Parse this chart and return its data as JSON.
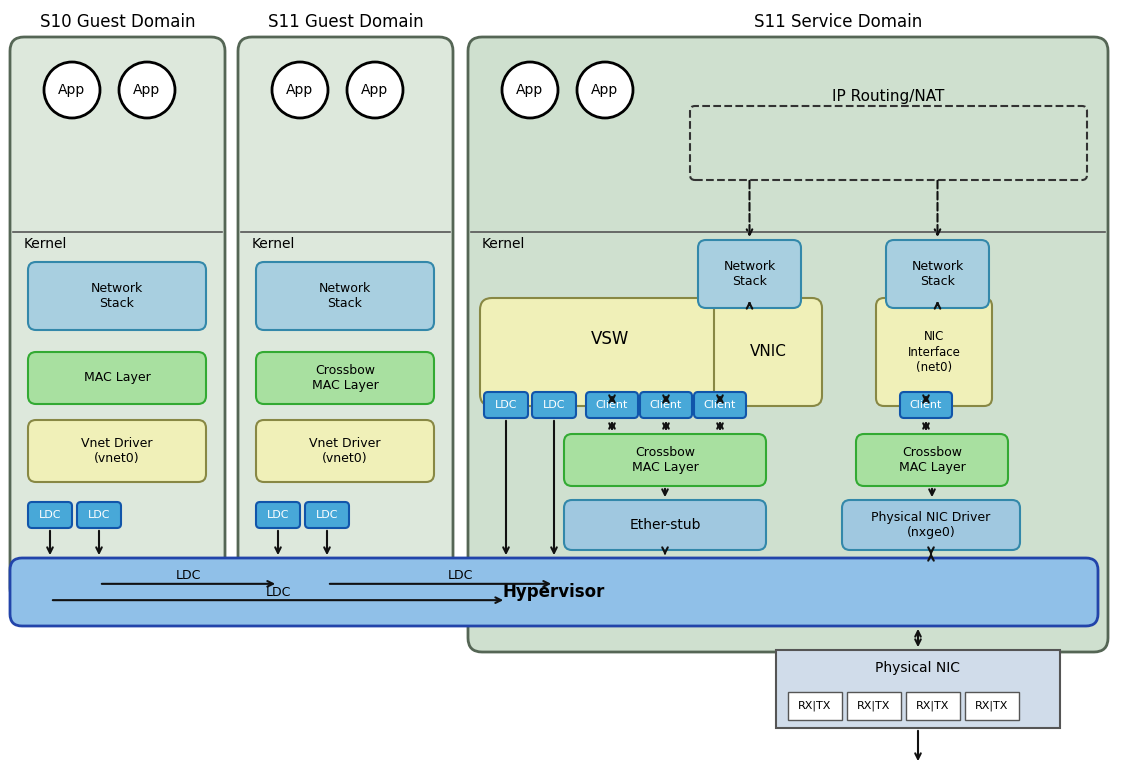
{
  "title_s10": "S10 Guest Domain",
  "title_s11g": "S11 Guest Domain",
  "title_s11s": "S11 Service Domain",
  "bg_color": "#ffffff",
  "domain_s10_bg": "#dde8dc",
  "domain_s11g_bg": "#dde8dc",
  "domain_s11s_bg": "#cfe0cf",
  "network_stack_color": "#a8cfe0",
  "mac_layer_color": "#a8e0a0",
  "vnet_driver_color": "#f0f0b8",
  "crossbow_mac_s11g_color": "#a8e0a0",
  "ldc_color": "#48a8d8",
  "vsw_color": "#f0f0b8",
  "vnic_color": "#f0f0b8",
  "nic_interface_color": "#f0f0b8",
  "client_color": "#48a8d8",
  "crossbow_mac_color": "#a8e0a0",
  "crossbow_mac_r_color": "#a8e0a0",
  "ether_stub_color": "#a0c8e0",
  "nic_driver_color": "#a0c8e0",
  "physical_nic_color": "#d0dcea",
  "hypervisor_color": "#90c0e8",
  "arrow_color": "#111111",
  "text_color": "#000000",
  "ldc_text": "LDC",
  "client_text": "Client"
}
